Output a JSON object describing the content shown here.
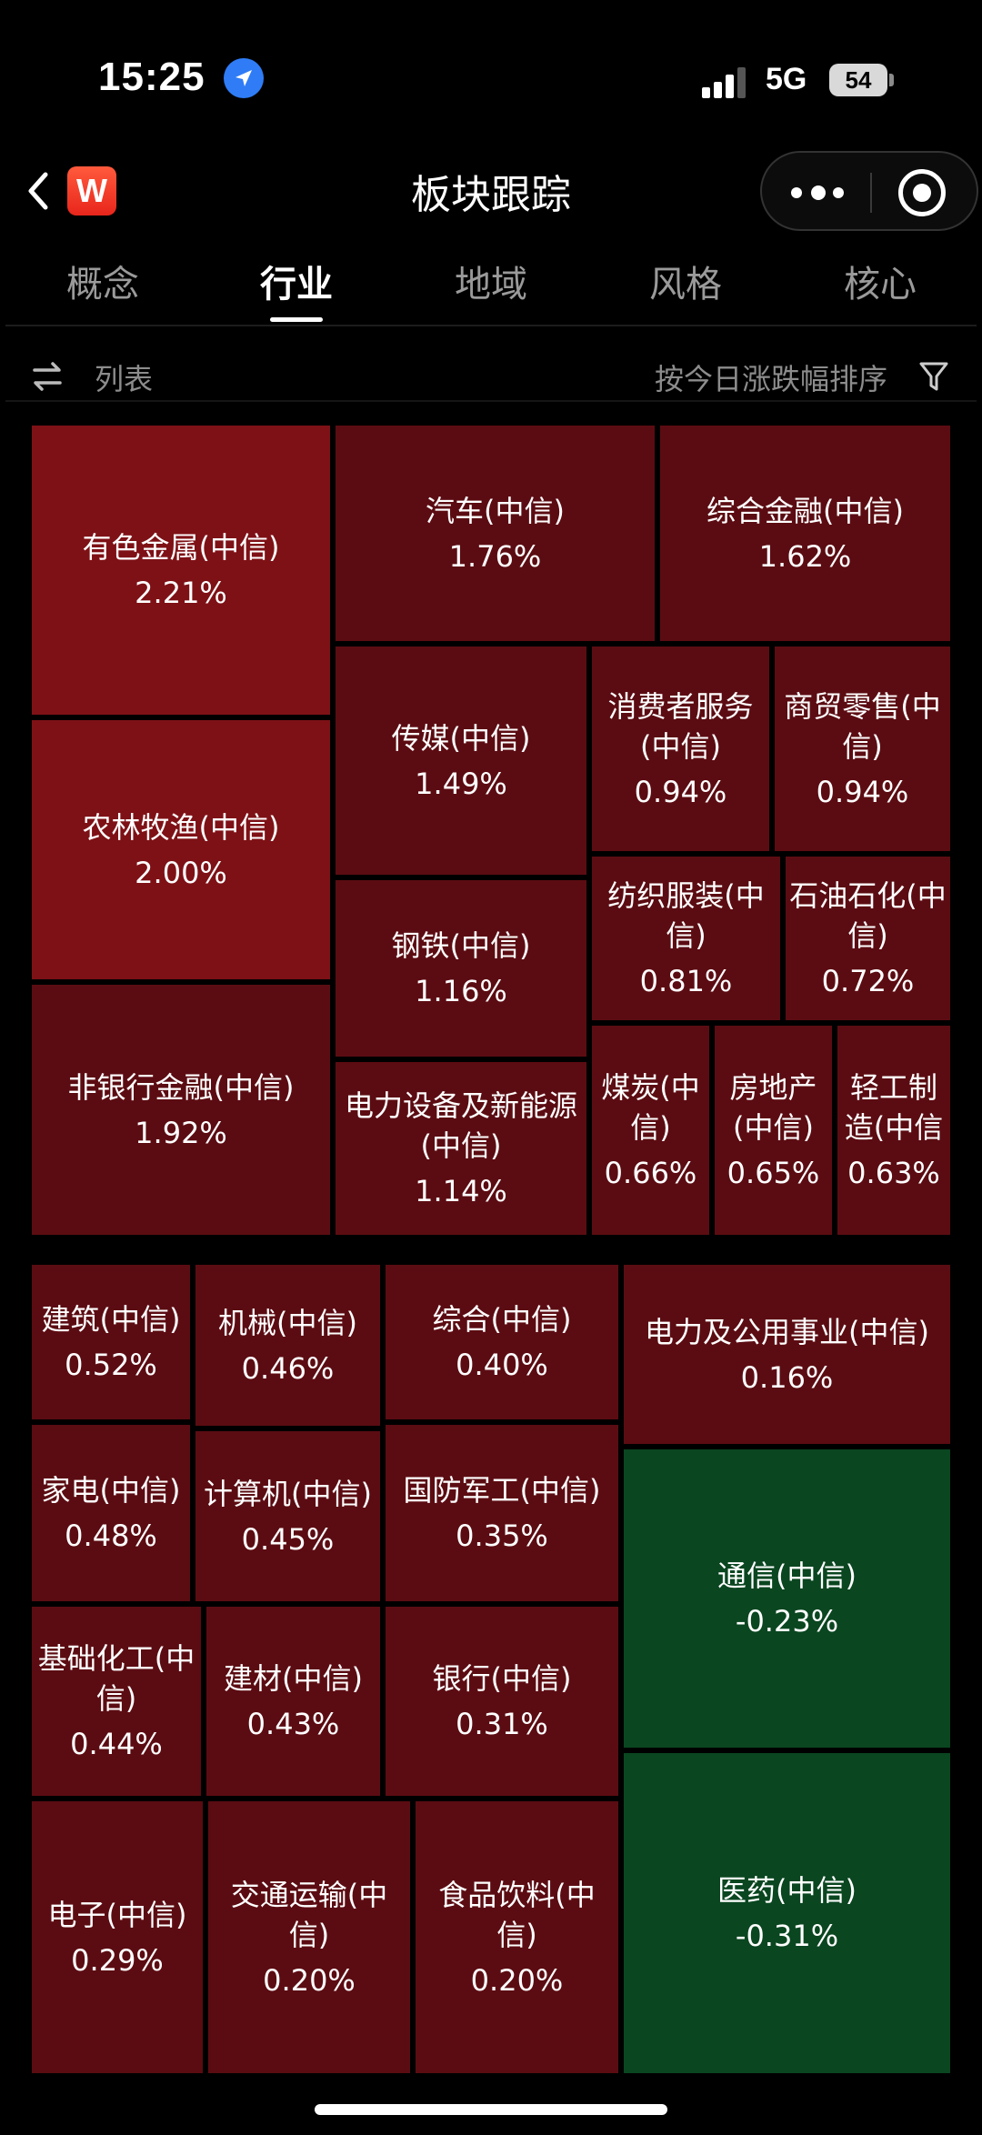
{
  "status_bar": {
    "time": "15:25",
    "network": "5G",
    "battery": "54"
  },
  "nav": {
    "title": "板块跟踪",
    "app_logo_letter": "W"
  },
  "tabs": [
    "概念",
    "行业",
    "地域",
    "风格",
    "核心"
  ],
  "active_tab": "行业",
  "filter": {
    "list_label": "列表",
    "sort_label": "按今日涨跌幅排序"
  },
  "colors": {
    "strong_red": "#7e1116",
    "mid_red": "#6a0e14",
    "light_red": "#5b0c12",
    "green": "#0a4620",
    "accent_blue": "#2f7cf6"
  },
  "tiles": [
    {
      "name": "有色金属(中信)",
      "change": "2.21%"
    },
    {
      "name": "汽车(中信)",
      "change": "1.76%"
    },
    {
      "name": "综合金融(中信)",
      "change": "1.62%"
    },
    {
      "name": "农林牧渔(中信)",
      "change": "2.00%"
    },
    {
      "name": "传媒(中信)",
      "change": "1.49%"
    },
    {
      "name": "消费者服务(中信)",
      "change": "0.94%"
    },
    {
      "name": "商贸零售(中信)",
      "change": "0.94%"
    },
    {
      "name": "钢铁(中信)",
      "change": "1.16%"
    },
    {
      "name": "纺织服装(中信)",
      "change": "0.81%"
    },
    {
      "name": "石油石化(中信)",
      "change": "0.72%"
    },
    {
      "name": "非银行金融(中信)",
      "change": "1.92%"
    },
    {
      "name": "电力设备及新能源(中信)",
      "change": "1.14%"
    },
    {
      "name": "煤炭(中信)",
      "change": "0.66%"
    },
    {
      "name": "房地产(中信)",
      "change": "0.65%"
    },
    {
      "name": "轻工制造(中信",
      "change": "0.63%"
    },
    {
      "name": "建筑(中信)",
      "change": "0.52%"
    },
    {
      "name": "机械(中信)",
      "change": "0.46%"
    },
    {
      "name": "综合(中信)",
      "change": "0.40%"
    },
    {
      "name": "电力及公用事业(中信)",
      "change": "0.16%"
    },
    {
      "name": "家电(中信)",
      "change": "0.48%"
    },
    {
      "name": "计算机(中信)",
      "change": "0.45%"
    },
    {
      "name": "国防军工(中信)",
      "change": "0.35%"
    },
    {
      "name": "通信(中信)",
      "change": "-0.23%"
    },
    {
      "name": "基础化工(中信)",
      "change": "0.44%"
    },
    {
      "name": "建材(中信)",
      "change": "0.43%"
    },
    {
      "name": "银行(中信)",
      "change": "0.31%"
    },
    {
      "name": "医药(中信)",
      "change": "-0.31%"
    },
    {
      "name": "电子(中信)",
      "change": "0.29%"
    },
    {
      "name": "交通运输(中信)",
      "change": "0.20%"
    },
    {
      "name": "食品饮料(中信)",
      "change": "0.20%"
    }
  ]
}
